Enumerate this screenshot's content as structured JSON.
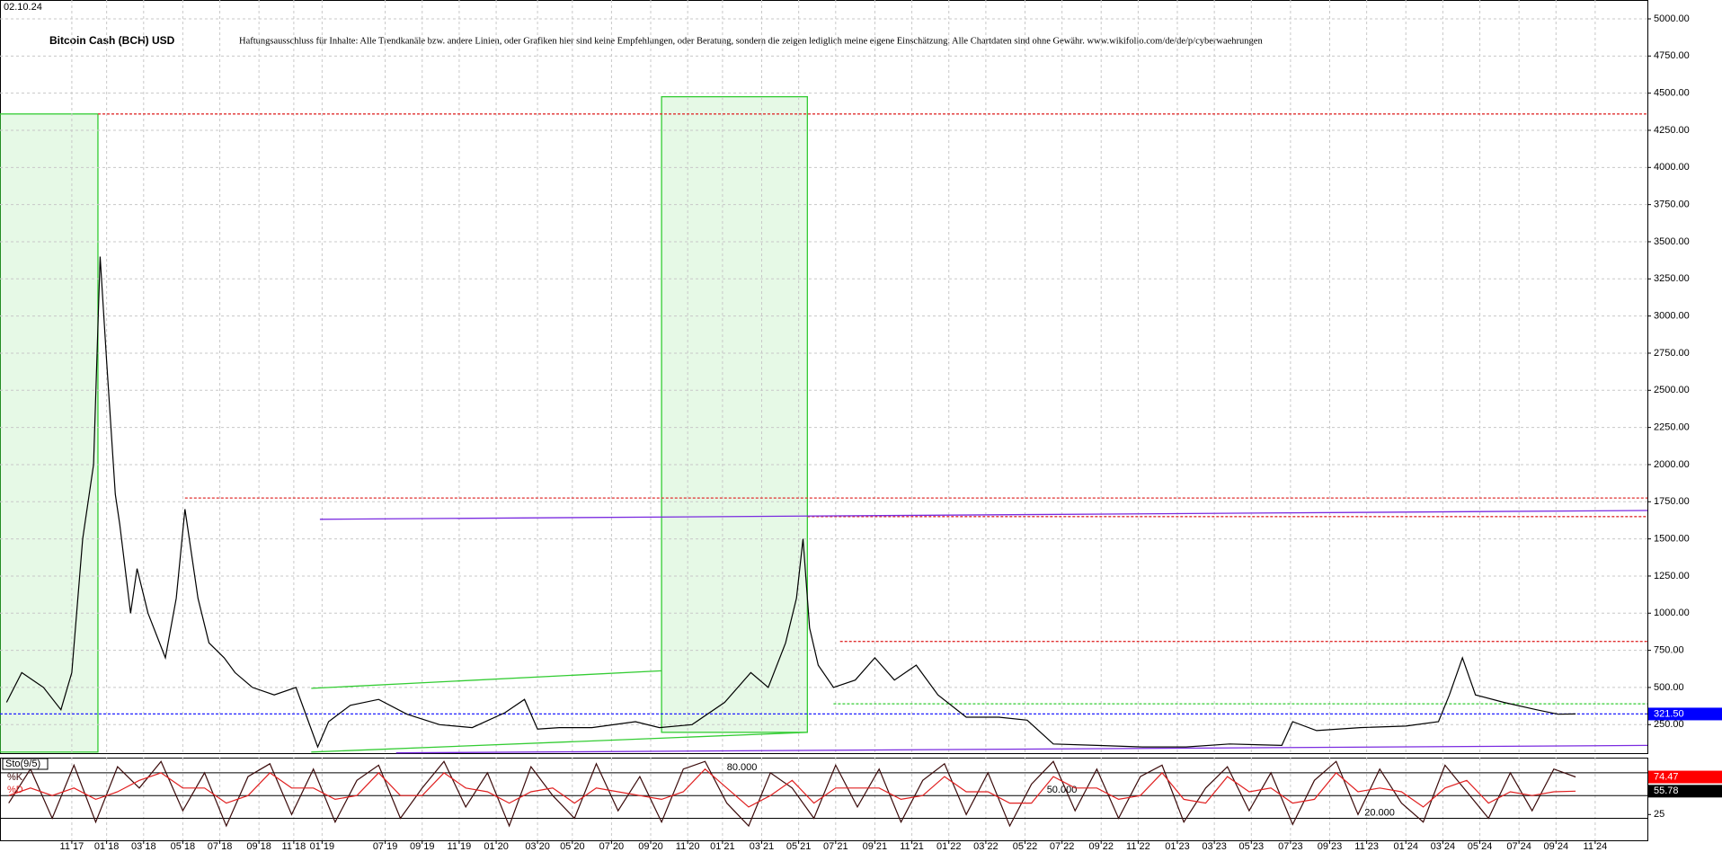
{
  "chart_data": [
    {
      "type": "line",
      "date": "02.10.24",
      "title": "Bitcoin Cash (BCH) USD",
      "subtitle": "Haftungsausschluss für Inhalte: Alle Trendkanäle bzw. andere Linien, oder Grafiken hier sind keine Empfehlungen, oder Beratung, sondern die zeigen lediglich meine eigene Einschätzung. Alle Chartdaten sind ohne Gewähr.  www.wikifolio.com/de/de/p/cyberwaehrungen",
      "xlim": [
        2017.5,
        2025.07
      ],
      "ylim": [
        58,
        5127
      ],
      "grid": true,
      "color": "#000000",
      "x": [
        2017.53,
        2017.6,
        2017.7,
        2017.78,
        2017.83,
        2017.88,
        2017.93,
        2017.96,
        2017.99,
        2018.03,
        2018.05,
        2018.1,
        2018.13,
        2018.18,
        2018.26,
        2018.31,
        2018.35,
        2018.41,
        2018.46,
        2018.53,
        2018.58,
        2018.66,
        2018.76,
        2018.86,
        2018.91,
        2018.96,
        2019.01,
        2019.11,
        2019.24,
        2019.37,
        2019.52,
        2019.67,
        2019.82,
        2019.91,
        2019.97,
        2020.07,
        2020.22,
        2020.42,
        2020.53,
        2020.68,
        2020.83,
        2020.95,
        2021.03,
        2021.11,
        2021.16,
        2021.19,
        2021.22,
        2021.26,
        2021.33,
        2021.43,
        2021.52,
        2021.61,
        2021.71,
        2021.81,
        2021.94,
        2022.09,
        2022.22,
        2022.34,
        2022.54,
        2022.75,
        2022.95,
        2023.15,
        2023.39,
        2023.44,
        2023.55,
        2023.75,
        2023.96,
        2024.11,
        2024.16,
        2024.22,
        2024.28,
        2024.41,
        2024.56,
        2024.66,
        2024.74
      ],
      "values": [
        400,
        600,
        500,
        350,
        600,
        1500,
        2000,
        3400,
        2700,
        1800,
        1600,
        1000,
        1300,
        1000,
        700,
        1100,
        1700,
        1100,
        800,
        700,
        600,
        500,
        450,
        500,
        300,
        100,
        270,
        380,
        420,
        320,
        250,
        230,
        330,
        420,
        220,
        230,
        230,
        270,
        230,
        250,
        400,
        600,
        500,
        800,
        1100,
        1500,
        900,
        650,
        500,
        550,
        700,
        550,
        650,
        450,
        300,
        300,
        280,
        120,
        110,
        100,
        100,
        120,
        110,
        270,
        210,
        230,
        240,
        270,
        450,
        700,
        450,
        400,
        350,
        320,
        321.5
      ],
      "current": {
        "value": 321.5,
        "label": "321.50"
      },
      "yticks": [
        {
          "value": 250,
          "label": "250.00"
        },
        {
          "value": 500,
          "label": "500.00"
        },
        {
          "value": 750,
          "label": "750.00"
        },
        {
          "value": 1000,
          "label": "1000.00"
        },
        {
          "value": 1250,
          "label": "1250.00"
        },
        {
          "value": 1500,
          "label": "1500.00"
        },
        {
          "value": 1750,
          "label": "1750.00"
        },
        {
          "value": 2000,
          "label": "2000.00"
        },
        {
          "value": 2250,
          "label": "2250.00"
        },
        {
          "value": 2500,
          "label": "2500.00"
        },
        {
          "value": 2750,
          "label": "2750.00"
        },
        {
          "value": 3000,
          "label": "3000.00"
        },
        {
          "value": 3250,
          "label": "3250.00"
        },
        {
          "value": 3500,
          "label": "3500.00"
        },
        {
          "value": 3750,
          "label": "3750.00"
        },
        {
          "value": 4000,
          "label": "4000.00"
        },
        {
          "value": 4250,
          "label": "4250.00"
        },
        {
          "value": 4500,
          "label": "4500.00"
        },
        {
          "value": 4750,
          "label": "4750.00"
        },
        {
          "value": 5000,
          "label": "5000.00"
        }
      ],
      "xticks": [
        {
          "value": 2017.83,
          "label": "11 17"
        },
        {
          "value": 2017.99,
          "label": "01 18"
        },
        {
          "value": 2018.16,
          "label": "03 18"
        },
        {
          "value": 2018.34,
          "label": "05 18"
        },
        {
          "value": 2018.51,
          "label": "07 18"
        },
        {
          "value": 2018.69,
          "label": "09 18"
        },
        {
          "value": 2018.85,
          "label": "11 18"
        },
        {
          "value": 2018.98,
          "label": "01 19"
        },
        {
          "value": 2019.27,
          "label": "07 19"
        },
        {
          "value": 2019.44,
          "label": "09 19"
        },
        {
          "value": 2019.61,
          "label": "11 19"
        },
        {
          "value": 2019.78,
          "label": "01 20"
        },
        {
          "value": 2019.97,
          "label": "03 20"
        },
        {
          "value": 2020.13,
          "label": "05 20"
        },
        {
          "value": 2020.31,
          "label": "07 20"
        },
        {
          "value": 2020.49,
          "label": "09 20"
        },
        {
          "value": 2020.66,
          "label": "11 20"
        },
        {
          "value": 2020.82,
          "label": "01 21"
        },
        {
          "value": 2021.0,
          "label": "03 21"
        },
        {
          "value": 2021.17,
          "label": "05 21"
        },
        {
          "value": 2021.34,
          "label": "07 21"
        },
        {
          "value": 2021.52,
          "label": "09 21"
        },
        {
          "value": 2021.69,
          "label": "11 21"
        },
        {
          "value": 2021.86,
          "label": "01 22"
        },
        {
          "value": 2022.03,
          "label": "03 22"
        },
        {
          "value": 2022.21,
          "label": "05 22"
        },
        {
          "value": 2022.38,
          "label": "07 22"
        },
        {
          "value": 2022.56,
          "label": "09 22"
        },
        {
          "value": 2022.73,
          "label": "11 22"
        },
        {
          "value": 2022.91,
          "label": "01 23"
        },
        {
          "value": 2023.08,
          "label": "03 23"
        },
        {
          "value": 2023.25,
          "label": "05 23"
        },
        {
          "value": 2023.43,
          "label": "07 23"
        },
        {
          "value": 2023.61,
          "label": "09 23"
        },
        {
          "value": 2023.78,
          "label": "11 23"
        },
        {
          "value": 2023.96,
          "label": "01 24"
        },
        {
          "value": 2024.13,
          "label": "03 24"
        },
        {
          "value": 2024.3,
          "label": "05 24"
        },
        {
          "value": 2024.48,
          "label": "07 24"
        },
        {
          "value": 2024.65,
          "label": "09 24"
        },
        {
          "value": 2024.83,
          "label": "11 24"
        }
      ],
      "zones": [
        {
          "x": [
            2017.5,
            2017.95
          ],
          "y": [
            65,
            4360
          ],
          "color": "#33cc33"
        },
        {
          "x": [
            2020.54,
            2021.21
          ],
          "y": [
            198,
            4476
          ],
          "color": "#33cc33"
        }
      ],
      "lines": [
        {
          "x": [
            2017.95,
            2025.07
          ],
          "y": [
            4360,
            4360
          ],
          "color": "#e03030",
          "dash": true
        },
        {
          "x": [
            2018.35,
            2025.07
          ],
          "y": [
            1775,
            1775
          ],
          "color": "#e03030",
          "dash": true
        },
        {
          "x": [
            2021.21,
            2025.07
          ],
          "y": [
            1650,
            1650
          ],
          "color": "#e03030",
          "dash": true
        },
        {
          "x": [
            2021.36,
            2025.07
          ],
          "y": [
            810,
            810
          ],
          "color": "#e03030",
          "dash": true
        },
        {
          "x": [
            2017.5,
            2025.07
          ],
          "y": [
            321.5,
            321.5
          ],
          "color": "#2020ff",
          "dash": true
        },
        {
          "x": [
            2021.33,
            2025.07
          ],
          "y": [
            390,
            390
          ],
          "color": "#33cc33",
          "dash": true
        },
        {
          "x": [
            2018.97,
            2025.07
          ],
          "y": [
            1632,
            1691
          ],
          "color": "#7a2be0",
          "dash": false
        },
        {
          "x": [
            2019.32,
            2025.07
          ],
          "y": [
            60,
            110
          ],
          "color": "#7a2be0",
          "dash": false
        },
        {
          "x": [
            2018.93,
            2020.54
          ],
          "y": [
            494,
            612
          ],
          "color": "#33cc33",
          "dash": false
        },
        {
          "x": [
            2018.93,
            2021.21
          ],
          "y": [
            65,
            198
          ],
          "color": "#33cc33",
          "dash": false
        }
      ]
    },
    {
      "type": "line",
      "title": "Sto(9/5)",
      "xlim": [
        2017.5,
        2025.07
      ],
      "ylim": [
        -9,
        100
      ],
      "x": [
        2017.54,
        2017.64,
        2017.74,
        2017.84,
        2017.94,
        2018.04,
        2018.14,
        2018.24,
        2018.34,
        2018.44,
        2018.54,
        2018.64,
        2018.74,
        2018.84,
        2018.94,
        2019.04,
        2019.14,
        2019.24,
        2019.34,
        2019.44,
        2019.54,
        2019.64,
        2019.74,
        2019.84,
        2019.94,
        2020.04,
        2020.14,
        2020.24,
        2020.34,
        2020.44,
        2020.54,
        2020.64,
        2020.74,
        2020.84,
        2020.94,
        2021.04,
        2021.14,
        2021.24,
        2021.34,
        2021.44,
        2021.54,
        2021.64,
        2021.74,
        2021.84,
        2021.94,
        2022.04,
        2022.14,
        2022.24,
        2022.34,
        2022.44,
        2022.54,
        2022.64,
        2022.74,
        2022.84,
        2022.94,
        2023.04,
        2023.14,
        2023.24,
        2023.34,
        2023.44,
        2023.54,
        2023.64,
        2023.74,
        2023.84,
        2023.94,
        2024.04,
        2024.14,
        2024.24,
        2024.34,
        2024.44,
        2024.54,
        2024.64,
        2024.74
      ],
      "series": [
        {
          "name": "%K",
          "color": "#3a0a0a",
          "current": {
            "value": 74.47,
            "label": "74.47"
          },
          "label_color": "#ff0000",
          "values": [
            40,
            85,
            20,
            90,
            15,
            88,
            60,
            95,
            30,
            80,
            10,
            75,
            92,
            25,
            85,
            15,
            70,
            90,
            20,
            60,
            95,
            35,
            80,
            10,
            88,
            50,
            20,
            92,
            30,
            75,
            15,
            85,
            95,
            40,
            10,
            80,
            60,
            20,
            90,
            35,
            85,
            15,
            70,
            92,
            25,
            80,
            10,
            65,
            95,
            30,
            85,
            20,
            75,
            90,
            15,
            60,
            88,
            30,
            80,
            12,
            70,
            95,
            25,
            85,
            40,
            15,
            90,
            55,
            20,
            80,
            30,
            85,
            74.47
          ]
        },
        {
          "name": "%D",
          "color": "#e02020",
          "current": {
            "value": 55.78,
            "label": "55.78"
          },
          "label_color": "#000000",
          "values": [
            50,
            60,
            50,
            60,
            45,
            55,
            70,
            80,
            60,
            60,
            40,
            50,
            80,
            60,
            60,
            45,
            50,
            80,
            50,
            50,
            80,
            60,
            55,
            40,
            55,
            60,
            40,
            60,
            55,
            50,
            45,
            55,
            85,
            60,
            35,
            50,
            70,
            40,
            60,
            60,
            60,
            45,
            50,
            75,
            55,
            55,
            40,
            40,
            75,
            60,
            60,
            45,
            50,
            80,
            45,
            40,
            75,
            55,
            60,
            40,
            45,
            80,
            55,
            60,
            55,
            35,
            60,
            70,
            40,
            55,
            50,
            55,
            55.78
          ]
        }
      ],
      "yticks": [
        25
      ],
      "levels": [
        {
          "value": 80,
          "label": "80.000",
          "at": 2020.84
        },
        {
          "value": 50,
          "label": "50.000",
          "at": 2022.31
        },
        {
          "value": 20,
          "label": "20.000",
          "at": 2023.77
        }
      ]
    }
  ]
}
